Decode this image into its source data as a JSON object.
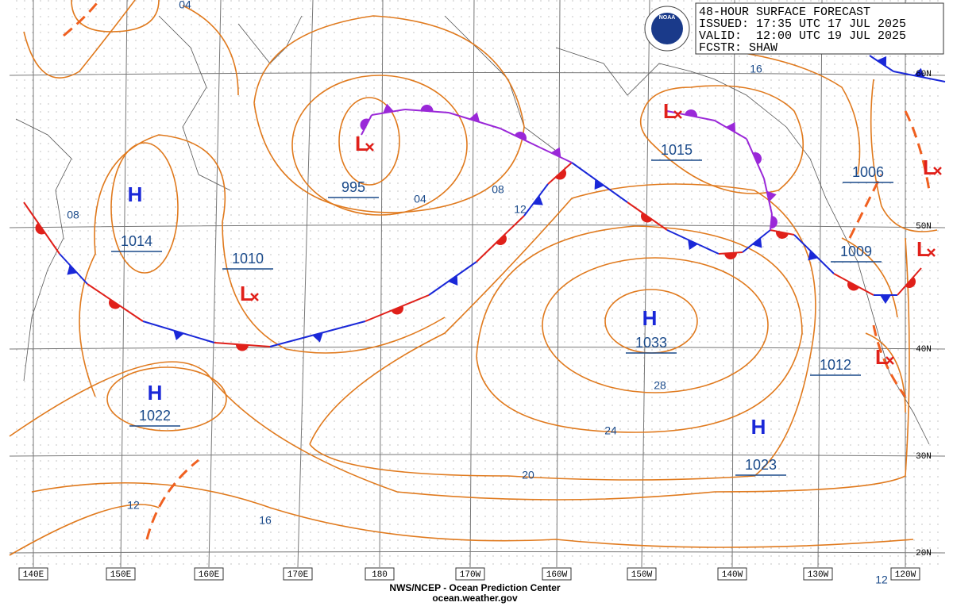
{
  "header": {
    "title": "48-HOUR SURFACE FORECAST",
    "issued": "ISSUED: 17:35 UTC 17 JUL 2025",
    "valid": "VALID:  12:00 UTC 19 JUL 2025",
    "forecaster": "FCSTR: SHAW",
    "logo": "NOAA"
  },
  "longitudes": [
    "140E",
    "150E",
    "160E",
    "170E",
    "180",
    "170W",
    "160W",
    "150W",
    "140W",
    "130W",
    "120W"
  ],
  "latitudes": [
    "60N",
    "50N",
    "40N",
    "30N",
    "20N"
  ],
  "centers": [
    {
      "symbol": "H",
      "pressure": "1014"
    },
    {
      "symbol": "L",
      "pressure": "1010"
    },
    {
      "symbol": "L",
      "pressure": "995"
    },
    {
      "symbol": "H",
      "pressure": "1022"
    },
    {
      "symbol": "H",
      "pressure": "1033"
    },
    {
      "symbol": "L",
      "pressure": "1015"
    },
    {
      "symbol": "L",
      "pressure": "1006"
    },
    {
      "symbol": "L",
      "pressure": "1009"
    },
    {
      "symbol": "L",
      "pressure": "1012"
    },
    {
      "symbol": "H",
      "pressure": "1023"
    }
  ],
  "isobar_labels": [
    "04",
    "08",
    "04",
    "08",
    "12",
    "16",
    "28",
    "24",
    "20",
    "16",
    "12",
    "12"
  ],
  "footer": {
    "line1": "NWS/NCEP - Ocean Prediction Center",
    "line2": "ocean.weather.gov"
  }
}
